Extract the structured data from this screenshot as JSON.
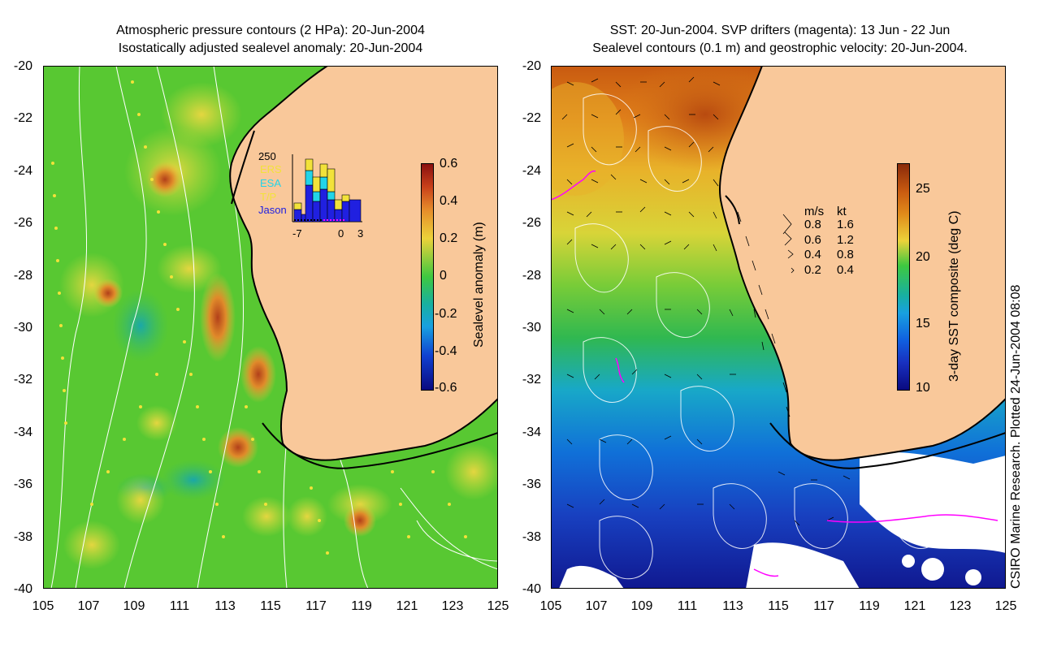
{
  "left": {
    "title_line1": "Atmospheric pressure contours (2 HPa): 20-Jun-2004",
    "title_line2": "Isostatically adjusted sealevel anomaly: 20-Jun-2004",
    "y_ticks": [
      "-20",
      "-22",
      "-24",
      "-26",
      "-28",
      "-30",
      "-32",
      "-34",
      "-36",
      "-38",
      "-40"
    ],
    "x_ticks": [
      "105",
      "107",
      "109",
      "111",
      "113",
      "115",
      "117",
      "119",
      "121",
      "123",
      "125"
    ],
    "colorbar": {
      "label": "Sealevel anomaly (m)",
      "ticks": [
        "0.6",
        "0.4",
        "0.2",
        "0",
        "-0.2",
        "-0.4",
        "-0.6"
      ]
    },
    "inset": {
      "ymax": "250",
      "legend": [
        "ERS",
        "ESA",
        "T/P",
        "Jason"
      ],
      "x_ticks": [
        "-7",
        "0",
        "3"
      ]
    }
  },
  "right": {
    "title_line1": "SST: 20-Jun-2004. SVP drifters (magenta): 13 Jun - 22 Jun",
    "title_line2": "Sealevel contours (0.1 m) and geostrophic velocity: 20-Jun-2004.",
    "y_ticks": [
      "-20",
      "-22",
      "-24",
      "-26",
      "-28",
      "-30",
      "-32",
      "-34",
      "-36",
      "-38",
      "-40"
    ],
    "x_ticks": [
      "105",
      "107",
      "109",
      "111",
      "113",
      "115",
      "117",
      "119",
      "121",
      "123",
      "125"
    ],
    "colorbar": {
      "label": "3-day SST composite (deg C)",
      "ticks": [
        "25",
        "20",
        "15",
        "10"
      ]
    },
    "velocity_legend": {
      "header_ms": "m/s",
      "header_kt": "kt",
      "rows": [
        {
          "ms": "0.8",
          "kt": "1.6"
        },
        {
          "ms": "0.6",
          "kt": "1.2"
        },
        {
          "ms": "0.4",
          "kt": "0.8"
        },
        {
          "ms": "0.2",
          "kt": "0.4"
        }
      ]
    }
  },
  "credit": "CSIRO Marine Research. Plotted 24-Jun-2004 08:08",
  "colors": {
    "land": "#f9c89a",
    "coast": "#000000",
    "contour": "#ffffff",
    "drifter": "#ff00ff"
  }
}
